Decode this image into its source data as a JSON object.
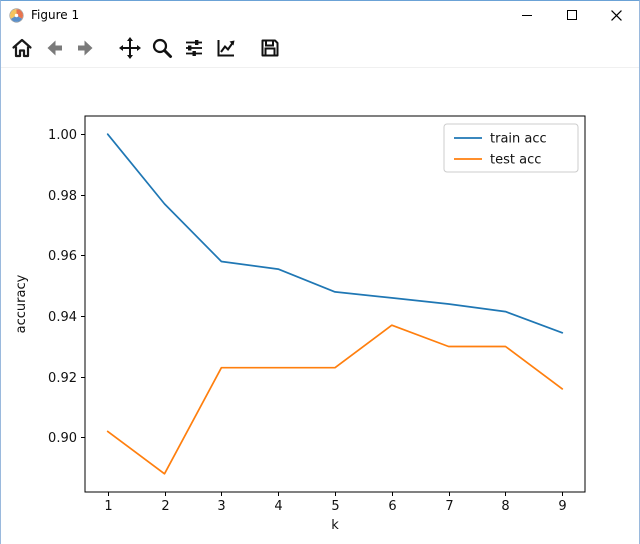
{
  "window": {
    "title": "Figure 1",
    "icons": {
      "app": "matplotlib-logo-icon",
      "minimize": "minimize-icon",
      "maximize": "maximize-icon",
      "close": "close-icon"
    }
  },
  "toolbar": {
    "buttons": [
      {
        "name": "home",
        "icon": "home-icon"
      },
      {
        "name": "back",
        "icon": "back-arrow-icon"
      },
      {
        "name": "forward",
        "icon": "forward-arrow-icon"
      },
      {
        "name": "pan",
        "icon": "move-arrows-icon"
      },
      {
        "name": "zoom",
        "icon": "magnifier-icon"
      },
      {
        "name": "configure-subplots",
        "icon": "sliders-icon"
      },
      {
        "name": "edit-axis",
        "icon": "chart-line-icon"
      },
      {
        "name": "save",
        "icon": "floppy-disk-icon"
      }
    ]
  },
  "chart_data": {
    "type": "line",
    "title": "",
    "xlabel": "k",
    "ylabel": "accuracy",
    "x": [
      1,
      2,
      3,
      4,
      5,
      6,
      7,
      8,
      9
    ],
    "series": [
      {
        "name": "train acc",
        "color": "#1f77b4",
        "values": [
          1.0,
          0.977,
          0.958,
          0.9555,
          0.948,
          0.946,
          0.944,
          0.9415,
          0.9345
        ]
      },
      {
        "name": "test acc",
        "color": "#ff7f0e",
        "values": [
          0.902,
          0.888,
          0.923,
          0.923,
          0.923,
          0.937,
          0.93,
          0.93,
          0.916
        ]
      }
    ],
    "xticks": [
      1,
      2,
      3,
      4,
      5,
      6,
      7,
      8,
      9
    ],
    "yticks": [
      0.9,
      0.92,
      0.94,
      0.96,
      0.98,
      1.0
    ],
    "xlim": [
      0.6,
      9.4
    ],
    "ylim": [
      0.882,
      1.006
    ],
    "grid": false,
    "legend": {
      "position": "upper right",
      "entries": [
        "train acc",
        "test acc"
      ]
    }
  }
}
